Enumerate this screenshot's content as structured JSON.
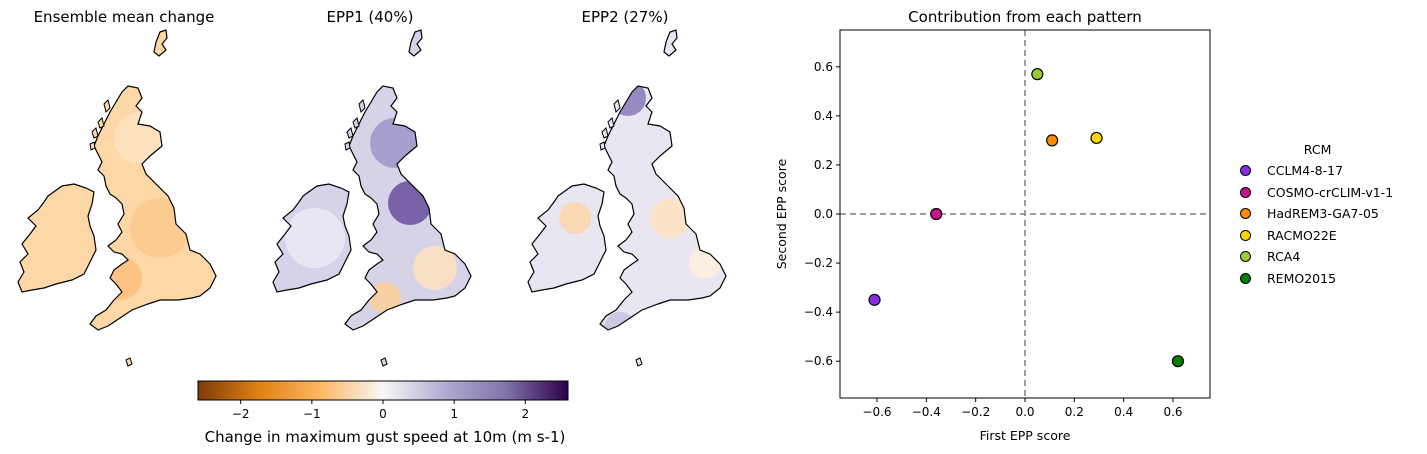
{
  "maps": [
    {
      "title": "Ensemble mean change",
      "style": "orange"
    },
    {
      "title": "EPP1 (40%)",
      "style": "purple"
    },
    {
      "title": "EPP2 (27%)",
      "style": "mixed"
    }
  ],
  "colorbar": {
    "label": "Change in maximum gust speed at 10m (m s-1)",
    "range": [
      -2.6,
      2.6
    ],
    "ticks": [
      "−2",
      "−1",
      "0",
      "1",
      "2"
    ],
    "tick_values": [
      -2,
      -1,
      0,
      1,
      2
    ],
    "colors": [
      "#7f3b08",
      "#e08214",
      "#fdb863",
      "#f7f7f7",
      "#b2abd2",
      "#8073ac",
      "#2d004b"
    ]
  },
  "chart_data": {
    "type": "scatter",
    "title": "Contribution from each pattern",
    "xlabel": "First EPP score",
    "ylabel": "Second EPP score",
    "xlim": [
      -0.75,
      0.75
    ],
    "ylim": [
      -0.75,
      0.75
    ],
    "xticks": [
      -0.6,
      -0.4,
      -0.2,
      0.0,
      0.2,
      0.4,
      0.6
    ],
    "xtick_labels": [
      "−0.6",
      "−0.4",
      "−0.2",
      "0.0",
      "0.2",
      "0.4",
      "0.6"
    ],
    "yticks": [
      -0.6,
      -0.4,
      -0.2,
      0.0,
      0.2,
      0.4,
      0.6
    ],
    "ytick_labels": [
      "−0.6",
      "−0.4",
      "−0.2",
      "0.0",
      "0.2",
      "0.4",
      "0.6"
    ],
    "grid": false,
    "reference_lines": {
      "x": 0,
      "y": 0,
      "style": "dashed"
    },
    "legend_title": "RCM",
    "legend_position": "outside-right",
    "points": [
      {
        "name": "CCLM4-8-17",
        "x": -0.61,
        "y": -0.35,
        "color": "#8a2be2"
      },
      {
        "name": "COSMO-crCLIM-v1-1",
        "x": -0.36,
        "y": 0.0,
        "color": "#c71585"
      },
      {
        "name": "HadREM3-GA7-05",
        "x": 0.11,
        "y": 0.3,
        "color": "#ff8c00"
      },
      {
        "name": "RACMO22E",
        "x": 0.29,
        "y": 0.31,
        "color": "#ffd700"
      },
      {
        "name": "RCA4",
        "x": 0.05,
        "y": 0.57,
        "color": "#9acd32"
      },
      {
        "name": "REMO2015",
        "x": 0.62,
        "y": -0.6,
        "color": "#008000"
      }
    ]
  }
}
